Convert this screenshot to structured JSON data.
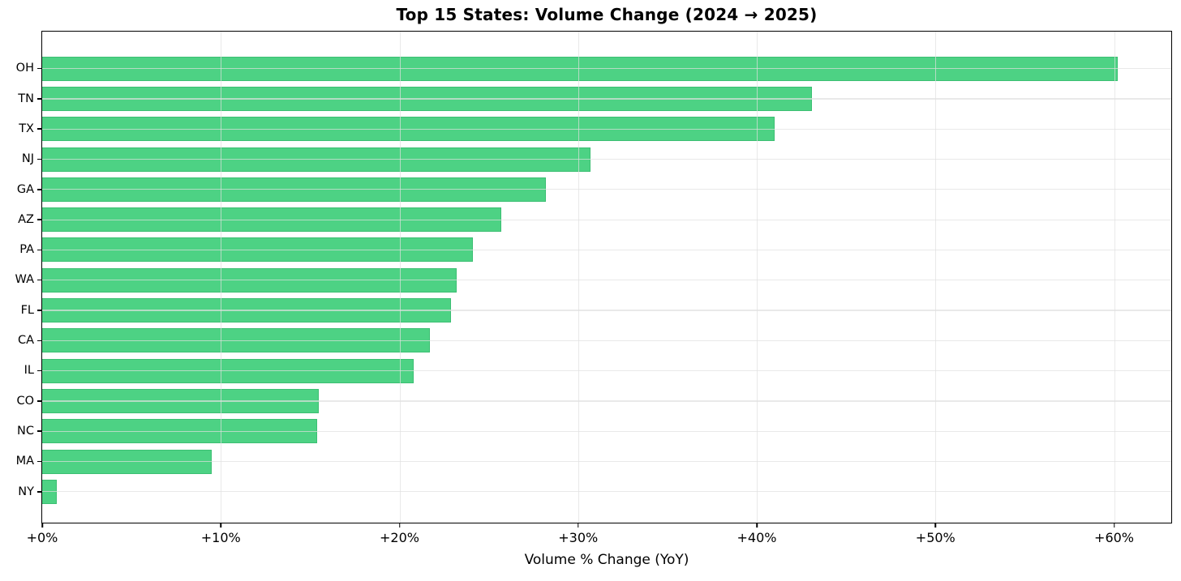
{
  "chart_data": {
    "type": "bar",
    "orientation": "horizontal",
    "title": "Top 15 States: Volume Change (2024 → 2025)",
    "xlabel": "Volume % Change (YoY)",
    "ylabel": "",
    "categories": [
      "OH",
      "TN",
      "TX",
      "NJ",
      "GA",
      "AZ",
      "PA",
      "WA",
      "FL",
      "CA",
      "IL",
      "CO",
      "NC",
      "MA",
      "NY"
    ],
    "values": [
      60.2,
      43.1,
      41.0,
      30.7,
      28.2,
      25.7,
      24.1,
      23.2,
      22.9,
      21.7,
      20.8,
      15.5,
      15.4,
      9.5,
      0.8
    ],
    "value_unit": "percent_yoy_change",
    "xlim": [
      0,
      63.2
    ],
    "xticks": [
      {
        "value": 0,
        "label": "+0%"
      },
      {
        "value": 10,
        "label": "+10%"
      },
      {
        "value": 20,
        "label": "+20%"
      },
      {
        "value": 30,
        "label": "+30%"
      },
      {
        "value": 40,
        "label": "+40%"
      },
      {
        "value": 50,
        "label": "+50%"
      },
      {
        "value": 60,
        "label": "+60%"
      }
    ],
    "grid": true,
    "gridlines_above_bars": true,
    "legend": "none",
    "colors": {
      "bar_fill": "#4dd284",
      "bar_edge": "#3cbf73",
      "grid": "#e0e0e0",
      "spine": "#000000",
      "text": "#000000",
      "background": "#ffffff"
    }
  }
}
